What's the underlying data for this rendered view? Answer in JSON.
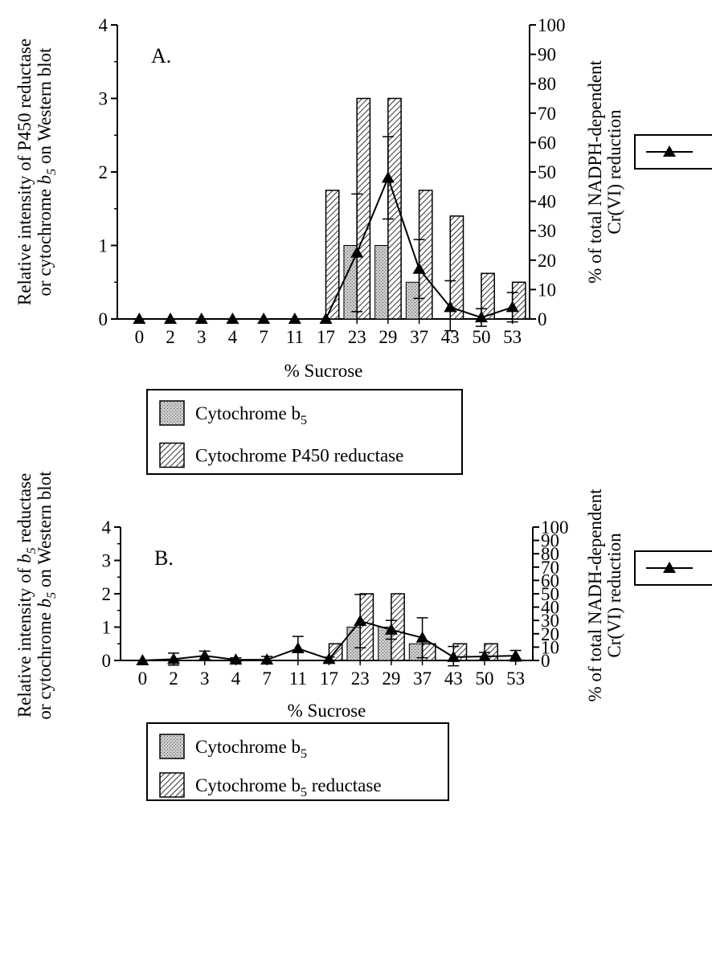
{
  "chart_data": [
    {
      "panel_label": "A.",
      "type": "bar",
      "categories": [
        "0",
        "2",
        "3",
        "4",
        "7",
        "11",
        "17",
        "23",
        "29",
        "37",
        "43",
        "50",
        "53"
      ],
      "xlabel": "% Sucrose",
      "ylabel_left": [
        "Relative intensity of P450 reductase",
        "or cytochrome",
        "b",
        "5",
        "on Western blot"
      ],
      "ylabel_right": [
        "% of total NADPH-dependent",
        "Cr(VI) reduction"
      ],
      "ylim_left": [
        0,
        4
      ],
      "yticks_left": [
        "0",
        "1",
        "2",
        "3",
        "4"
      ],
      "ylim_right": [
        0,
        100
      ],
      "yticks_right": [
        "0",
        "10",
        "20",
        "30",
        "40",
        "50",
        "60",
        "70",
        "80",
        "90",
        "100"
      ],
      "series": [
        {
          "name": "Cytochrome b",
          "subscript": "5",
          "kind": "bar",
          "pattern": "stipple",
          "values": [
            0,
            0,
            0,
            0,
            0,
            0,
            0,
            1.0,
            1.0,
            0.5,
            0,
            0,
            0
          ]
        },
        {
          "name": "Cytochrome P450 reductase",
          "kind": "bar",
          "pattern": "hatch",
          "values": [
            0,
            0,
            0,
            0,
            0,
            0,
            1.75,
            3.0,
            3.0,
            1.75,
            1.4,
            0.62,
            0.5
          ]
        },
        {
          "kind": "line",
          "marker": "triangle",
          "axis": "right",
          "values": [
            0,
            0,
            0,
            0,
            0,
            0,
            0,
            22.5,
            48,
            17,
            4,
            0.5,
            4
          ],
          "error": [
            0,
            0,
            0,
            0,
            0,
            0,
            0,
            20,
            14,
            10,
            9,
            3,
            5
          ]
        }
      ],
      "legend": [
        "Cytochrome b|5",
        "Cytochrome P450 reductase"
      ]
    },
    {
      "panel_label": "B.",
      "type": "bar",
      "categories": [
        "0",
        "2",
        "3",
        "4",
        "7",
        "11",
        "17",
        "23",
        "29",
        "37",
        "43",
        "50",
        "53"
      ],
      "xlabel": "% Sucrose",
      "ylabel_left": [
        "Relative intensity of",
        "b",
        "5",
        " reductase",
        "or cytochrome",
        "b",
        "5",
        "on Western blot"
      ],
      "ylabel_right": [
        "% of total NADH-dependent",
        "Cr(VI) reduction"
      ],
      "ylim_left": [
        0,
        4
      ],
      "yticks_left": [
        "0",
        "1",
        "2",
        "3",
        "4"
      ],
      "ylim_right": [
        0,
        100
      ],
      "yticks_right": [
        "0",
        "10",
        "20",
        "30",
        "40",
        "50",
        "60",
        "70",
        "80",
        "90",
        "100"
      ],
      "series": [
        {
          "name": "Cytochrome b",
          "subscript": "5",
          "kind": "bar",
          "pattern": "stipple",
          "values": [
            0,
            0,
            0,
            0,
            0,
            0,
            0,
            1.0,
            1.0,
            0.5,
            0,
            0,
            0
          ]
        },
        {
          "name": "Cytochrome b5 reductase",
          "kind": "bar",
          "pattern": "hatch",
          "values": [
            0,
            0,
            0,
            0,
            0,
            0,
            0.5,
            2.0,
            2.0,
            0.5,
            0.5,
            0.5,
            0
          ]
        },
        {
          "kind": "line",
          "marker": "triangle",
          "axis": "right",
          "values": [
            0,
            1,
            3.5,
            0.5,
            0.5,
            9,
            1,
            29.5,
            23,
            17,
            2.5,
            3,
            3.5
          ],
          "error": [
            0,
            4.5,
            3.5,
            1.5,
            2.5,
            9,
            1.5,
            20,
            7,
            15,
            8,
            3,
            4
          ]
        }
      ],
      "legend": [
        "Cytochrome b|5",
        "Cytochrome b|5| reductase"
      ]
    }
  ]
}
